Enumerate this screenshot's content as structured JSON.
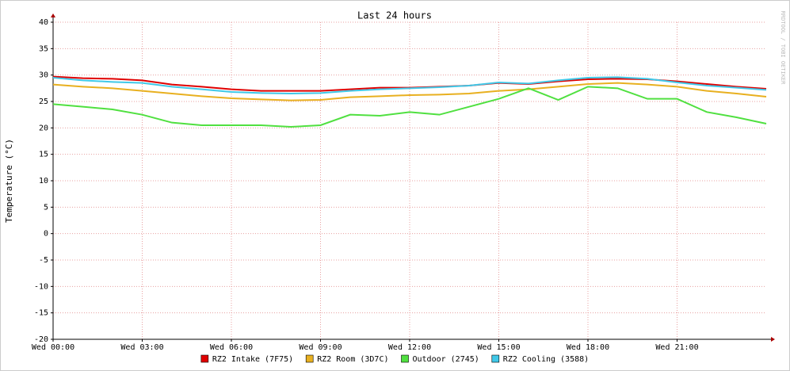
{
  "chart_data": {
    "type": "line",
    "title": "Last 24 hours",
    "y_label": "Temperature (°C)",
    "watermark": "RRDTOOL / TOBI OETIKER",
    "x": [
      0,
      1,
      2,
      3,
      4,
      5,
      6,
      7,
      8,
      9,
      10,
      11,
      12,
      13,
      14,
      15,
      16,
      17,
      18,
      19,
      20,
      21,
      22,
      23,
      24
    ],
    "xlim": [
      0,
      24
    ],
    "xticks": [
      {
        "value": 0,
        "label": "Wed 00:00"
      },
      {
        "value": 3,
        "label": "Wed 03:00"
      },
      {
        "value": 6,
        "label": "Wed 06:00"
      },
      {
        "value": 9,
        "label": "Wed 09:00"
      },
      {
        "value": 12,
        "label": "Wed 12:00"
      },
      {
        "value": 15,
        "label": "Wed 15:00"
      },
      {
        "value": 18,
        "label": "Wed 18:00"
      },
      {
        "value": 21,
        "label": "Wed 21:00"
      }
    ],
    "ylim": [
      -20,
      40
    ],
    "yticks": [
      -20,
      -15,
      -10,
      -5,
      0,
      5,
      10,
      15,
      20,
      25,
      30,
      35,
      40
    ],
    "grid": true,
    "series": [
      {
        "name": "RZ2 Intake (7F75)",
        "color": "#e00000",
        "values": [
          29.7,
          29.4,
          29.3,
          29.0,
          28.2,
          27.8,
          27.3,
          27.0,
          27.0,
          27.0,
          27.3,
          27.6,
          27.6,
          27.8,
          28.0,
          28.5,
          28.3,
          28.8,
          29.2,
          29.3,
          29.2,
          28.8,
          28.3,
          27.8,
          27.4
        ]
      },
      {
        "name": "RZ2 Room (3D7C)",
        "color": "#e8b020",
        "values": [
          28.2,
          27.8,
          27.5,
          27.0,
          26.5,
          26.0,
          25.6,
          25.4,
          25.2,
          25.3,
          25.8,
          26.0,
          26.2,
          26.3,
          26.5,
          27.0,
          27.3,
          27.8,
          28.3,
          28.5,
          28.2,
          27.8,
          27.0,
          26.5,
          25.9
        ]
      },
      {
        "name": "Outdoor (2745)",
        "color": "#50e040",
        "values": [
          24.5,
          24.0,
          23.5,
          22.5,
          21.0,
          20.5,
          20.5,
          20.5,
          20.2,
          20.5,
          22.5,
          22.3,
          23.0,
          22.5,
          24.0,
          25.5,
          27.5,
          25.3,
          27.8,
          27.5,
          25.5,
          25.5,
          23.0,
          22.0,
          20.8
        ]
      },
      {
        "name": "RZ2 Cooling (3588)",
        "color": "#40c8e8",
        "values": [
          29.5,
          29.0,
          28.7,
          28.5,
          27.8,
          27.3,
          26.8,
          26.6,
          26.5,
          26.6,
          27.0,
          27.3,
          27.5,
          27.7,
          28.0,
          28.6,
          28.4,
          29.0,
          29.5,
          29.6,
          29.3,
          28.6,
          28.0,
          27.6,
          27.2
        ]
      }
    ]
  }
}
